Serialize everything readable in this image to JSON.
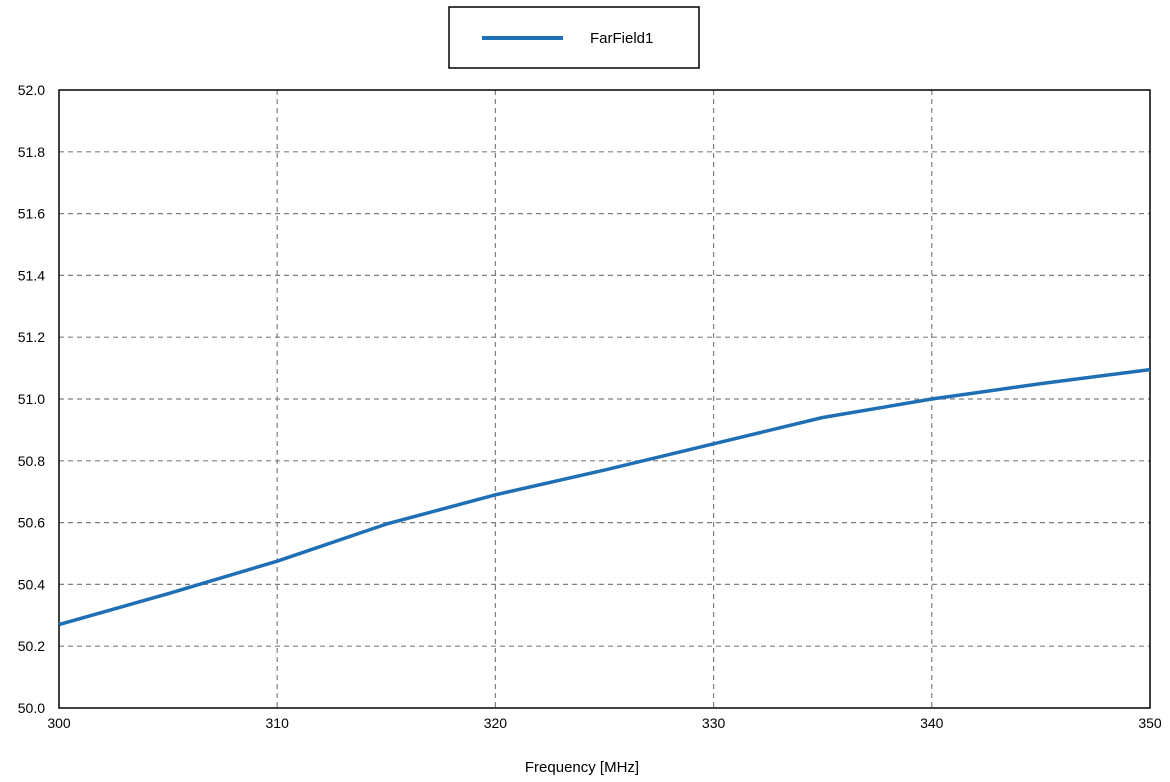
{
  "chart_data": {
    "type": "line",
    "title": "",
    "xlabel": "Frequency [MHz]",
    "ylabel": "",
    "xlim": [
      300,
      350
    ],
    "ylim": [
      50.0,
      52.0
    ],
    "xticks": [
      "300",
      "310",
      "320",
      "330",
      "340",
      "350"
    ],
    "yticks": [
      "50.0",
      "50.2",
      "50.4",
      "50.6",
      "50.8",
      "51.0",
      "51.2",
      "51.4",
      "51.6",
      "51.8",
      "52.0"
    ],
    "grid": true,
    "legend_position": "top-center",
    "series": [
      {
        "name": "FarField1",
        "color": "#1f6fb5",
        "x": [
          300,
          305,
          310,
          315,
          320,
          325,
          330,
          335,
          340,
          345,
          350
        ],
        "y": [
          50.27,
          50.37,
          50.475,
          50.595,
          50.69,
          50.77,
          50.855,
          50.94,
          51.0,
          51.05,
          51.095
        ]
      }
    ]
  }
}
